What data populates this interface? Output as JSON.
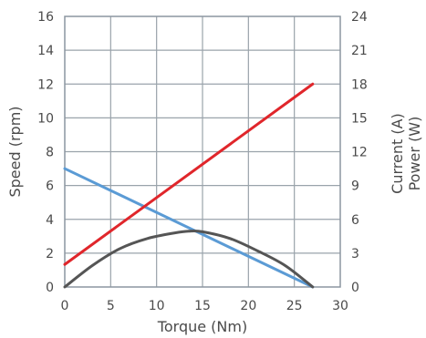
{
  "chart_data": {
    "type": "line",
    "xlabel": "Torque (Nm)",
    "ylabel_left": "Speed (rpm)",
    "ylabel_right_1": "Current (A)",
    "ylabel_right_2": "Power (W)",
    "xlim": [
      0,
      30
    ],
    "ylim_left": [
      0,
      16
    ],
    "ylim_right": [
      0,
      24
    ],
    "x_ticks": [
      0,
      5,
      10,
      15,
      20,
      25,
      30
    ],
    "y_left_ticks": [
      0,
      2,
      4,
      6,
      8,
      10,
      12,
      14,
      16
    ],
    "y_right_ticks": [
      0,
      3,
      6,
      9,
      12,
      15,
      18,
      21,
      24
    ],
    "grid": true,
    "series": [
      {
        "axis": "left",
        "color": "#5b9bd5",
        "x": [
          0,
          27
        ],
        "y": [
          7,
          0
        ]
      },
      {
        "axis": "right",
        "color": "#e0262b",
        "x": [
          0,
          27
        ],
        "y": [
          2,
          18
        ]
      },
      {
        "axis": "right",
        "color": "#555555",
        "x": [
          0,
          3,
          6,
          9,
          12,
          13.5,
          15,
          18,
          21,
          24,
          27
        ],
        "y": [
          0,
          1.9,
          3.4,
          4.3,
          4.8,
          4.95,
          4.9,
          4.3,
          3.2,
          1.9,
          0
        ]
      }
    ]
  }
}
